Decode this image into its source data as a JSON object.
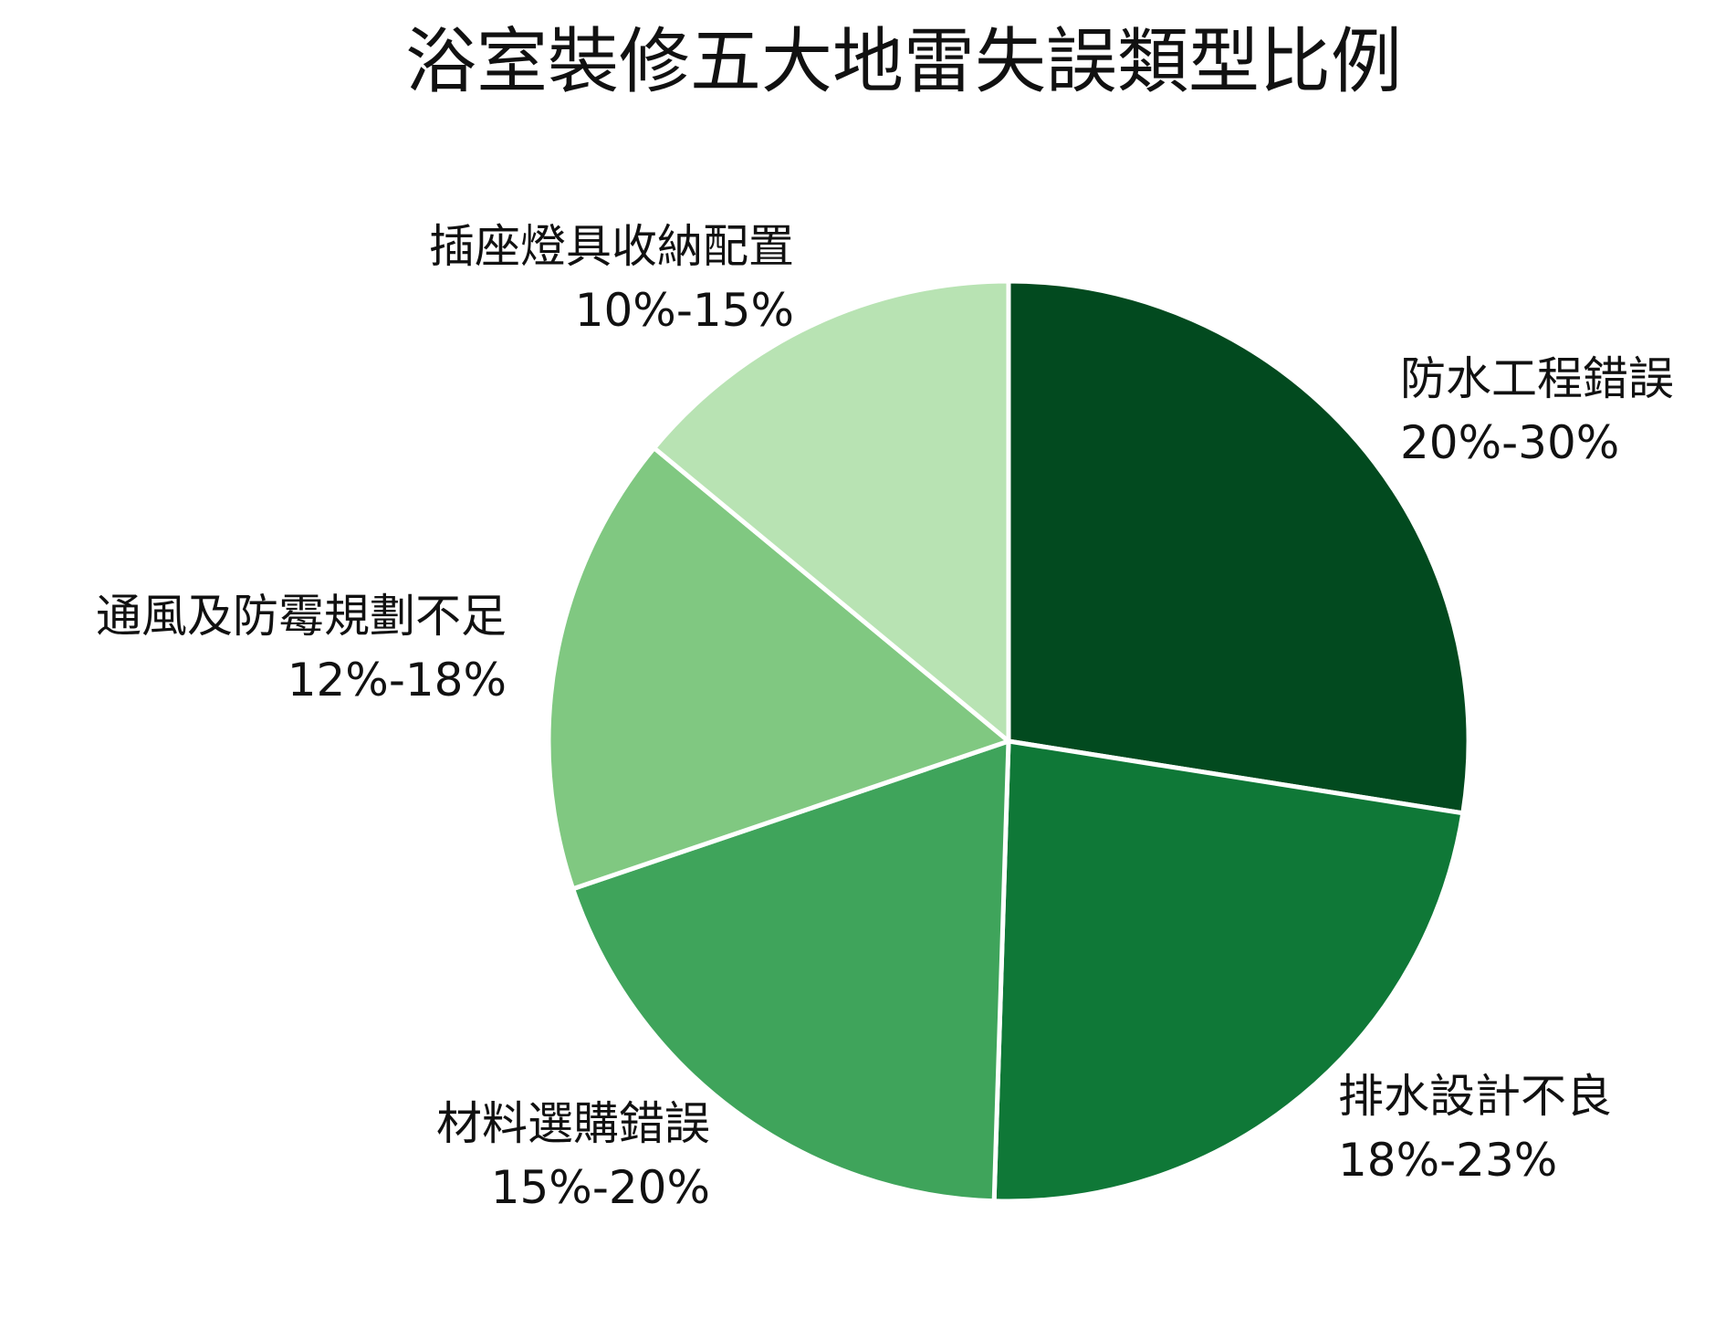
{
  "chart_data": {
    "type": "pie",
    "title": "浴室裝修五大地雷失誤類型比例",
    "start": "12 o'clock",
    "direction": "clockwise",
    "slices": [
      {
        "label": "防水工程錯誤",
        "range_text": "20%-30%",
        "value": 27.5,
        "color": "#024a1f"
      },
      {
        "label": "排水設計不良",
        "range_text": "18%-23%",
        "value": 23.0,
        "color": "#0f7837"
      },
      {
        "label": "材料選購錯誤",
        "range_text": "15%-20%",
        "value": 19.3,
        "color": "#3fa45b"
      },
      {
        "label": "通風及防霉規劃不足",
        "range_text": "12%-18%",
        "value": 16.2,
        "color": "#80c881"
      },
      {
        "label": "插座燈具收納配置",
        "range_text": "10%-15%",
        "value": 14.0,
        "color": "#b8e3b3"
      }
    ]
  }
}
